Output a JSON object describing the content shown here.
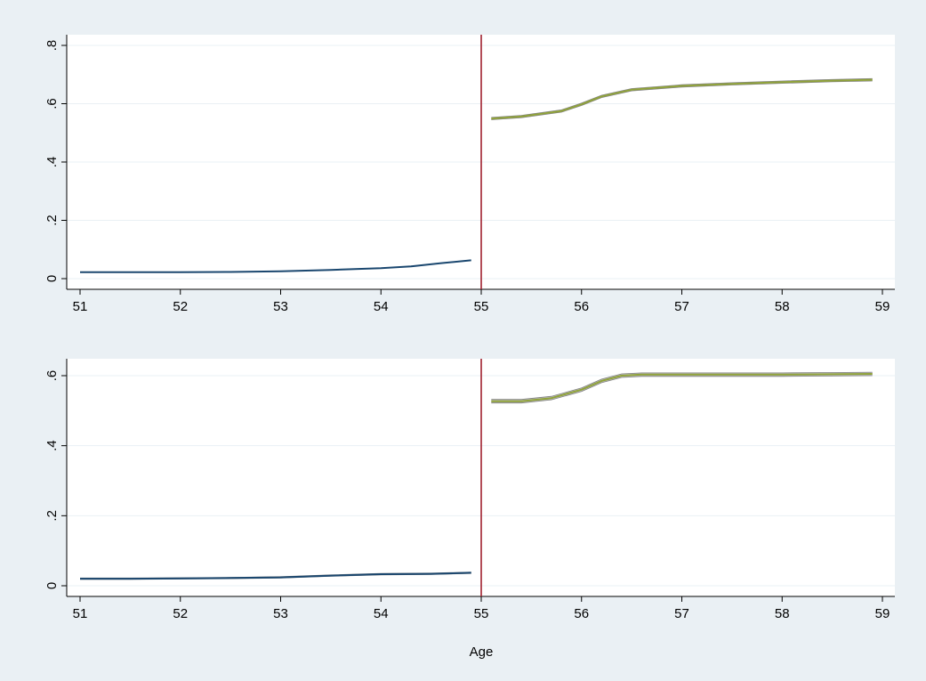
{
  "colors": {
    "background": "#eaf0f4",
    "plot_background": "#ffffff",
    "grid": "#eaf0f4",
    "axis": "#000000",
    "left_series": "#1a476f",
    "right_series": "#90a33a",
    "ci_band": "#a6a6a6",
    "cutoff_line": "#a0202e"
  },
  "chart_data": [
    {
      "type": "line",
      "panel": "top",
      "title": "",
      "xlabel": "",
      "ylabel": "",
      "xlim": [
        51,
        59
      ],
      "ylim": [
        0,
        0.8
      ],
      "x_ticks": [
        51,
        52,
        53,
        54,
        55,
        56,
        57,
        58,
        59
      ],
      "x_tick_labels": [
        "51",
        "52",
        "53",
        "54",
        "55",
        "56",
        "57",
        "58",
        "59"
      ],
      "y_ticks": [
        0,
        0.2,
        0.4,
        0.6,
        0.8
      ],
      "y_tick_labels": [
        "0",
        ".2",
        ".4",
        ".6",
        ".8"
      ],
      "grid": true,
      "cutoff": 55,
      "series": [
        {
          "segment": "below-cutoff",
          "x": [
            51,
            51.5,
            52,
            52.5,
            53,
            53.5,
            54,
            54.3,
            54.6,
            54.9
          ],
          "y": [
            0.022,
            0.022,
            0.022,
            0.023,
            0.025,
            0.03,
            0.036,
            0.042,
            0.053,
            0.063
          ]
        },
        {
          "segment": "above-cutoff",
          "x": [
            55.1,
            55.4,
            55.8,
            56,
            56.2,
            56.5,
            57,
            57.5,
            58,
            58.5,
            58.9
          ],
          "y": [
            0.549,
            0.556,
            0.575,
            0.598,
            0.625,
            0.648,
            0.661,
            0.668,
            0.674,
            0.679,
            0.682
          ],
          "ci": 0.004
        }
      ]
    },
    {
      "type": "line",
      "panel": "bottom",
      "title": "",
      "xlabel": "Age",
      "ylabel": "",
      "xlim": [
        51,
        59
      ],
      "ylim": [
        0,
        0.6
      ],
      "x_ticks": [
        51,
        52,
        53,
        54,
        55,
        56,
        57,
        58,
        59
      ],
      "x_tick_labels": [
        "51",
        "52",
        "53",
        "54",
        "55",
        "56",
        "57",
        "58",
        "59"
      ],
      "y_ticks": [
        0,
        0.2,
        0.4,
        0.6
      ],
      "y_tick_labels": [
        "0",
        ".2",
        ".4",
        ".6"
      ],
      "grid": true,
      "cutoff": 55,
      "series": [
        {
          "segment": "below-cutoff",
          "x": [
            51,
            51.5,
            52,
            52.5,
            53,
            53.5,
            54,
            54.5,
            54.9
          ],
          "y": [
            0.02,
            0.02,
            0.021,
            0.022,
            0.024,
            0.029,
            0.033,
            0.034,
            0.037
          ],
          "ci": 0.002
        },
        {
          "segment": "above-cutoff",
          "x": [
            55.1,
            55.4,
            55.7,
            56,
            56.2,
            56.4,
            56.6,
            57,
            57.5,
            58,
            58.5,
            58.9
          ],
          "y": [
            0.527,
            0.527,
            0.536,
            0.56,
            0.585,
            0.6,
            0.603,
            0.603,
            0.603,
            0.603,
            0.604,
            0.605
          ],
          "ci": 0.005
        }
      ]
    }
  ]
}
